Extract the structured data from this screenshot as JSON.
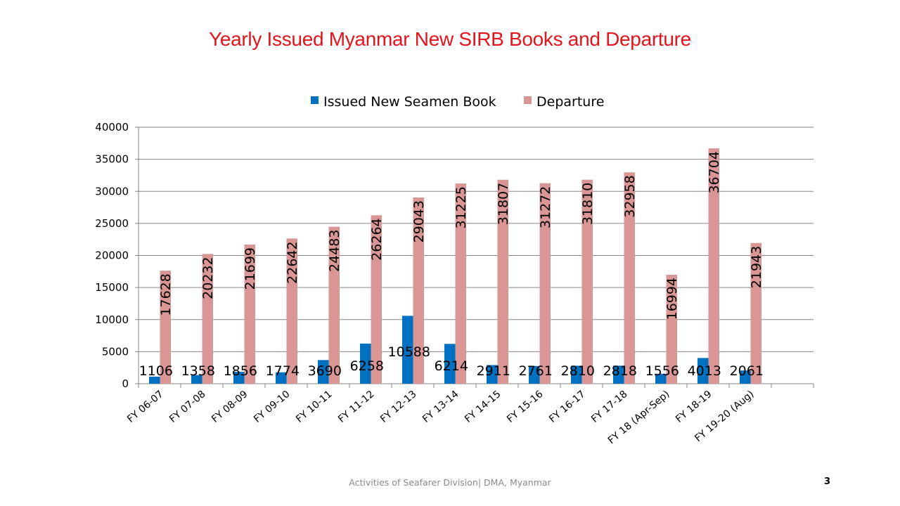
{
  "slide": {
    "footer": "Activities of Seafarer Division| DMA, Myanmar",
    "page_number": "3"
  },
  "chart_data": {
    "type": "bar",
    "title": "Yearly Issued Myanmar New SIRB Books and Departure",
    "xlabel": "",
    "ylabel": "",
    "ylim": [
      0,
      40000
    ],
    "yticks": [
      "0",
      "5000",
      "10000",
      "15000",
      "20000",
      "25000",
      "30000",
      "35000",
      "40000"
    ],
    "grid": true,
    "legend_position": "top",
    "categories": [
      "FY 06-07",
      "FY 07-08",
      "FY 08-09",
      "FY 09-10",
      "FY 10-11",
      "FY 11-12",
      "FY 12-13",
      "FY 13-14",
      "FY 14-15",
      "FY 15-16",
      "FY 16-17",
      "FY 17-18",
      "FY 18 (Apr-Sep)",
      "FY 18-19",
      "FY 19-20 (Aug)"
    ],
    "series": [
      {
        "name": "Issued New Seamen Book",
        "color": "#0070c0",
        "values": [
          1106,
          1358,
          1856,
          1774,
          3690,
          6258,
          10588,
          6214,
          2911,
          2761,
          2810,
          2818,
          1556,
          4013,
          2061
        ]
      },
      {
        "name": "Departure",
        "color": "#d99694",
        "values": [
          17628,
          20232,
          21699,
          22642,
          24483,
          26264,
          29043,
          31225,
          31807,
          31272,
          31810,
          32958,
          16994,
          36704,
          21943
        ]
      }
    ]
  }
}
